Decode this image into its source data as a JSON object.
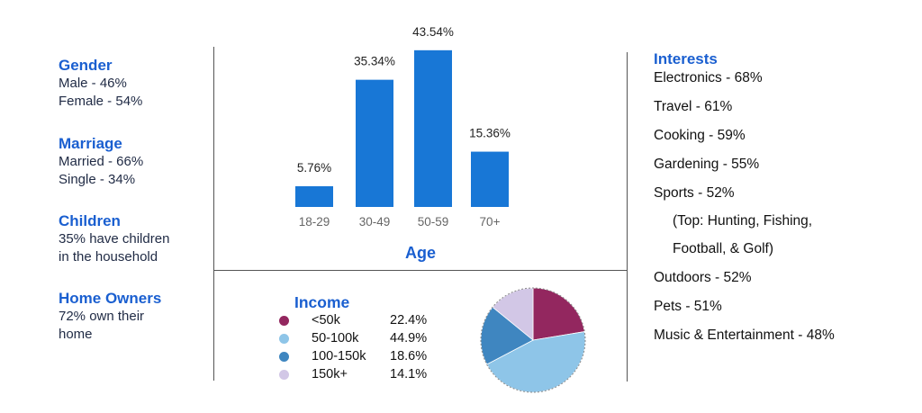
{
  "demographics": {
    "gender": {
      "title": "Gender",
      "lines": [
        "Male - 46%",
        "Female - 54%"
      ]
    },
    "marriage": {
      "title": "Marriage",
      "lines": [
        "Married - 66%",
        "Single - 34%"
      ]
    },
    "children": {
      "title": "Children",
      "lines": [
        "35% have children",
        "in the household"
      ]
    },
    "home_owners": {
      "title": "Home Owners",
      "lines": [
        "72% own their",
        "home"
      ]
    }
  },
  "interests": {
    "title": "Interests",
    "items": [
      "Electronics - 68%",
      "Travel - 61%",
      "Cooking - 59%",
      "Gardening - 55%",
      "Sports - 52%",
      "(Top: Hunting, Fishing,",
      "Football, & Golf)",
      "Outdoors - 52%",
      "Pets - 51%",
      "Music & Entertainment - 48%"
    ]
  },
  "colors": {
    "accent": "#1a5fd0",
    "bar": "#1877d6",
    "income": [
      "#93275f",
      "#8ec5e8",
      "#3f86c0",
      "#d2c7e6"
    ]
  },
  "chart_data": [
    {
      "type": "bar",
      "title": "",
      "xlabel": "Age",
      "ylabel": "",
      "categories": [
        "18-29",
        "30-49",
        "50-59",
        "70+"
      ],
      "values": [
        5.76,
        35.34,
        43.54,
        15.36
      ],
      "data_labels": [
        "5.76%",
        "35.34%",
        "43.54%",
        "15.36%"
      ],
      "ylim": [
        0,
        45
      ],
      "grid": false
    },
    {
      "type": "pie",
      "title": "Income",
      "categories": [
        "<50k",
        "50-100k",
        "100-150k",
        "150k+"
      ],
      "values": [
        22.4,
        44.9,
        18.6,
        14.1
      ],
      "value_labels": [
        "22.4%",
        "44.9%",
        "18.6%",
        "14.1%"
      ],
      "legend": "left"
    }
  ]
}
